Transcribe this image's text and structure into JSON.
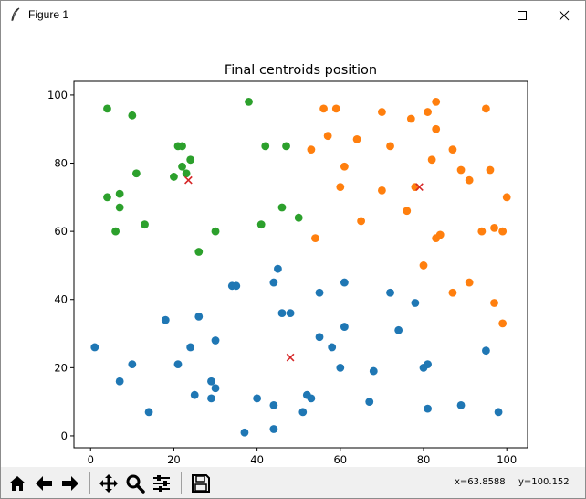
{
  "window": {
    "title": "Figure 1"
  },
  "toolbar": {
    "coord_x": "x=63.8588",
    "coord_y": "y=100.152"
  },
  "chart_data": {
    "type": "scatter",
    "title": "Final centroids position",
    "xlabel": "",
    "ylabel": "",
    "xlim": [
      -4,
      105
    ],
    "ylim": [
      -3.5,
      104
    ],
    "xticks": [
      0,
      20,
      40,
      60,
      80,
      100
    ],
    "yticks": [
      0,
      20,
      40,
      60,
      80,
      100
    ],
    "grid": false,
    "series": [
      {
        "color": "#1f77b4",
        "points": [
          [
            1,
            26
          ],
          [
            7,
            16
          ],
          [
            10,
            21
          ],
          [
            14,
            7
          ],
          [
            18,
            34
          ],
          [
            21,
            21
          ],
          [
            24,
            26
          ],
          [
            25,
            12
          ],
          [
            26,
            35
          ],
          [
            29,
            16
          ],
          [
            29,
            11
          ],
          [
            30,
            28
          ],
          [
            30,
            14
          ],
          [
            34,
            44
          ],
          [
            35,
            44
          ],
          [
            37,
            1
          ],
          [
            40,
            11
          ],
          [
            44,
            45
          ],
          [
            44,
            9
          ],
          [
            44,
            2
          ],
          [
            45,
            49
          ],
          [
            46,
            36
          ],
          [
            48,
            36
          ],
          [
            51,
            7
          ],
          [
            52,
            12
          ],
          [
            53,
            11
          ],
          [
            55,
            42
          ],
          [
            55,
            29
          ],
          [
            58,
            26
          ],
          [
            60,
            20
          ],
          [
            61,
            45
          ],
          [
            61,
            32
          ],
          [
            67,
            10
          ],
          [
            68,
            19
          ],
          [
            72,
            42
          ],
          [
            74,
            31
          ],
          [
            78,
            39
          ],
          [
            80,
            20
          ],
          [
            81,
            21
          ],
          [
            81,
            8
          ],
          [
            89,
            9
          ],
          [
            95,
            25
          ],
          [
            98,
            7
          ]
        ]
      },
      {
        "color": "#ff7f0e",
        "points": [
          [
            53,
            84
          ],
          [
            54,
            58
          ],
          [
            56,
            96
          ],
          [
            57,
            88
          ],
          [
            59,
            96
          ],
          [
            60,
            73
          ],
          [
            61,
            79
          ],
          [
            64,
            87
          ],
          [
            65,
            63
          ],
          [
            70,
            95
          ],
          [
            70,
            72
          ],
          [
            72,
            85
          ],
          [
            76,
            66
          ],
          [
            77,
            93
          ],
          [
            78,
            73
          ],
          [
            80,
            50
          ],
          [
            81,
            95
          ],
          [
            82,
            81
          ],
          [
            83,
            98
          ],
          [
            83,
            90
          ],
          [
            83,
            58
          ],
          [
            84,
            59
          ],
          [
            87,
            84
          ],
          [
            87,
            42
          ],
          [
            89,
            78
          ],
          [
            91,
            75
          ],
          [
            91,
            45
          ],
          [
            94,
            60
          ],
          [
            95,
            96
          ],
          [
            96,
            78
          ],
          [
            97,
            61
          ],
          [
            97,
            39
          ],
          [
            99,
            33
          ],
          [
            99,
            60
          ],
          [
            100,
            70
          ]
        ]
      },
      {
        "color": "#2ca02c",
        "points": [
          [
            4,
            96
          ],
          [
            4,
            70
          ],
          [
            6,
            60
          ],
          [
            7,
            71
          ],
          [
            7,
            67
          ],
          [
            10,
            94
          ],
          [
            11,
            77
          ],
          [
            13,
            62
          ],
          [
            20,
            76
          ],
          [
            21,
            85
          ],
          [
            22,
            85
          ],
          [
            22,
            79
          ],
          [
            23,
            77
          ],
          [
            24,
            81
          ],
          [
            26,
            54
          ],
          [
            30,
            60
          ],
          [
            38,
            98
          ],
          [
            41,
            62
          ],
          [
            42,
            85
          ],
          [
            46,
            67
          ],
          [
            47,
            85
          ],
          [
            50,
            64
          ]
        ]
      }
    ],
    "centroids": {
      "color": "#d62728",
      "marker": "x",
      "points": [
        [
          23.5,
          75
        ],
        [
          48,
          23
        ],
        [
          79,
          73
        ]
      ]
    }
  }
}
